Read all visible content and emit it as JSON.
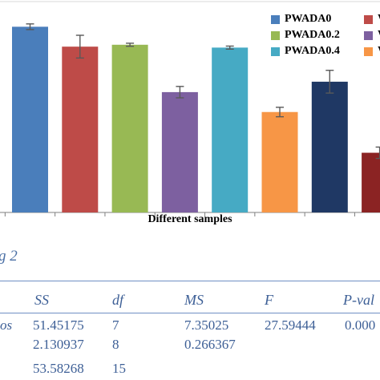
{
  "chart_data": {
    "type": "bar",
    "xlabel": "Different samples",
    "categories": [
      "",
      "",
      "",
      "",
      "",
      "",
      "",
      ""
    ],
    "series": [
      {
        "name": "PWADA0",
        "color": "#4a7ebb",
        "value": 9.8,
        "error": 0.15
      },
      {
        "name": "W",
        "color": "#be4b48",
        "value": 8.75,
        "error": 0.6
      },
      {
        "name": "PWADA0.2",
        "color": "#98b954",
        "value": 8.85,
        "error": 0.08
      },
      {
        "name": "W",
        "color": "#7d60a0",
        "value": 6.35,
        "error": 0.3
      },
      {
        "name": "PWADA0.4",
        "color": "#46aac4",
        "value": 8.7,
        "error": 0.08
      },
      {
        "name": "W",
        "color": "#f79646",
        "value": 5.3,
        "error": 0.25
      },
      {
        "name": "",
        "color": "#1f3864",
        "value": 6.9,
        "error": 0.6
      },
      {
        "name": "",
        "color": "#8b2323",
        "value": 3.15,
        "error": 0.3
      }
    ],
    "ylim": [
      0,
      11
    ],
    "grid": false,
    "legend": "top-right"
  },
  "caption": "g 2",
  "anova": {
    "headers": [
      "SS",
      "df",
      "MS",
      "F",
      "P-val"
    ],
    "rows": [
      {
        "label": "os",
        "ss": "51.45175",
        "df": "7",
        "ms": "7.35025",
        "f": "27.59444",
        "p": "0.000"
      },
      {
        "label": "",
        "ss": "2.130937",
        "df": "8",
        "ms": "0.266367",
        "f": "",
        "p": ""
      },
      {
        "label": "",
        "ss": "53.58268",
        "df": "15",
        "ms": "",
        "f": "",
        "p": ""
      }
    ]
  }
}
